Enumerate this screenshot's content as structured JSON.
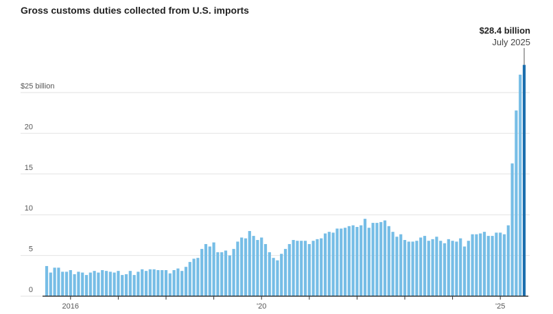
{
  "chart_data": {
    "type": "bar",
    "title": "Gross customs duties collected from U.S. imports",
    "categories": [
      null,
      null,
      null,
      null,
      null,
      null,
      "2016",
      null,
      null,
      null,
      null,
      null,
      null,
      null,
      null,
      null,
      null,
      null,
      null,
      null,
      null,
      null,
      null,
      null,
      null,
      null,
      null,
      null,
      null,
      null,
      null,
      null,
      null,
      null,
      null,
      null,
      null,
      null,
      null,
      null,
      null,
      null,
      null,
      null,
      null,
      null,
      null,
      null,
      null,
      null,
      null,
      null,
      null,
      null,
      "'20",
      null,
      null,
      null,
      null,
      null,
      null,
      null,
      null,
      null,
      null,
      null,
      null,
      null,
      null,
      null,
      null,
      null,
      null,
      null,
      null,
      null,
      null,
      null,
      null,
      null,
      null,
      null,
      null,
      null,
      null,
      null,
      null,
      null,
      null,
      null,
      null,
      null,
      null,
      null,
      null,
      null,
      null,
      null,
      null,
      null,
      null,
      null,
      null,
      null,
      null,
      null,
      null,
      null,
      null,
      null,
      null,
      null,
      null,
      null,
      "'25",
      null,
      null,
      null,
      null,
      null,
      null
    ],
    "values": [
      3.7,
      2.9,
      3.5,
      3.5,
      3.0,
      3.0,
      3.2,
      2.7,
      3.0,
      2.9,
      2.6,
      2.9,
      3.1,
      2.9,
      3.2,
      3.1,
      3.0,
      2.9,
      3.1,
      2.6,
      2.7,
      3.1,
      2.6,
      3.0,
      3.3,
      3.1,
      3.3,
      3.3,
      3.2,
      3.2,
      3.2,
      2.8,
      3.2,
      3.4,
      3.1,
      3.6,
      4.2,
      4.6,
      4.7,
      5.8,
      6.4,
      6.1,
      6.6,
      5.4,
      5.4,
      5.6,
      5.0,
      5.8,
      6.7,
      7.2,
      7.1,
      8.0,
      7.4,
      6.9,
      7.2,
      6.4,
      5.4,
      4.7,
      4.4,
      5.2,
      5.8,
      6.4,
      6.9,
      6.8,
      6.8,
      6.8,
      6.4,
      6.8,
      7.0,
      7.1,
      7.7,
      7.9,
      7.8,
      8.3,
      8.3,
      8.4,
      8.6,
      8.7,
      8.5,
      8.7,
      9.5,
      8.4,
      9.0,
      9.0,
      9.1,
      9.3,
      8.6,
      7.9,
      7.3,
      7.6,
      6.9,
      6.7,
      6.7,
      6.8,
      7.2,
      7.4,
      6.8,
      7.0,
      7.3,
      6.8,
      6.5,
      7.0,
      6.8,
      6.7,
      7.1,
      6.1,
      6.8,
      7.6,
      7.6,
      7.7,
      7.9,
      7.4,
      7.4,
      7.8,
      7.8,
      7.6,
      8.7,
      16.3,
      22.8,
      27.2,
      28.4
    ],
    "color": "#76bde6",
    "highlight_color": "#1c6fae",
    "annotation": {
      "label": "$28.4 billion",
      "sublabel": "July 2025"
    },
    "ylim": [
      0,
      29
    ],
    "yticks": [
      0,
      5,
      10,
      15,
      20,
      {
        "value": 25,
        "label": "$25 billion"
      }
    ],
    "grid": true
  }
}
